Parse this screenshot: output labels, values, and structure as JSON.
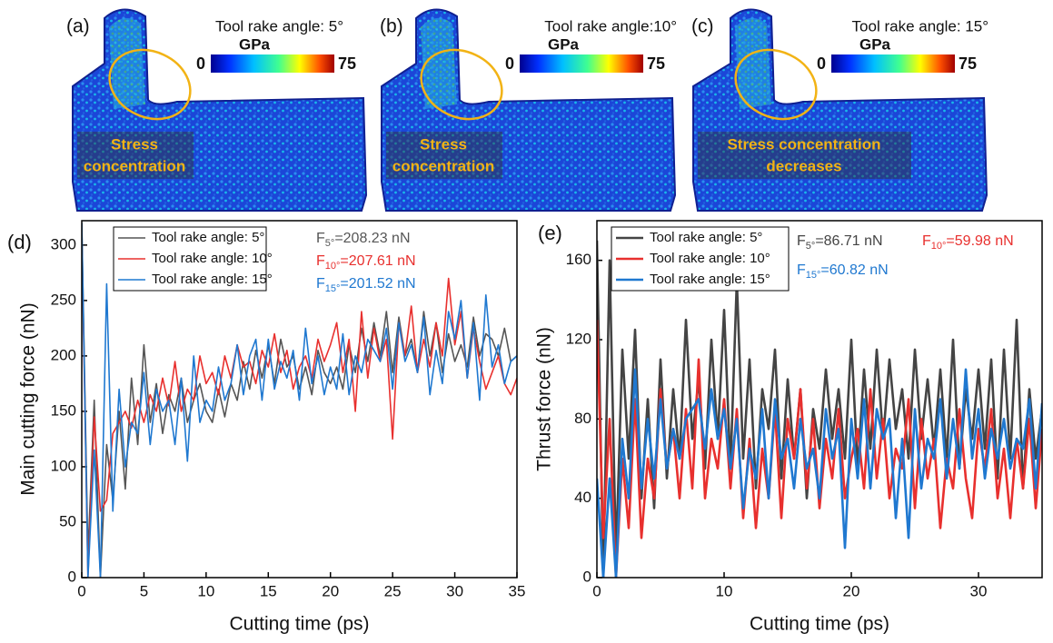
{
  "panels": [
    {
      "label": "(a)",
      "title": "Tool rake angle: 5°",
      "colorbar": {
        "label": "GPa",
        "min": 0,
        "max": 75
      },
      "annotation": [
        "Stress",
        "concentration"
      ]
    },
    {
      "label": "(b)",
      "title": "Tool rake angle:10°",
      "colorbar": {
        "label": "GPa",
        "min": 0,
        "max": 75
      },
      "annotation": [
        "Stress",
        "concentration"
      ]
    },
    {
      "label": "(c)",
      "title": "Tool rake angle: 15°",
      "colorbar": {
        "label": "GPa",
        "min": 0,
        "max": 75
      },
      "annotation": [
        "Stress concentration",
        "decreases"
      ]
    }
  ],
  "chart_data": [
    {
      "type": "line",
      "panel_label": "(d)",
      "x_label": "Cutting time (ps)",
      "y_label": "Main cutting force (nN)",
      "xlim": [
        0,
        35
      ],
      "xticks": [
        0,
        5,
        10,
        15,
        20,
        25,
        30,
        35
      ],
      "ylim": [
        0,
        322
      ],
      "yticks": [
        0,
        50,
        100,
        150,
        200,
        250,
        300
      ],
      "legend": "upper left",
      "x": [
        0,
        0.5,
        1,
        1.5,
        2,
        2.5,
        3,
        3.5,
        4,
        4.5,
        5,
        5.5,
        6,
        6.5,
        7,
        7.5,
        8,
        8.5,
        9,
        9.5,
        10,
        10.5,
        11,
        11.5,
        12,
        12.5,
        13,
        13.5,
        14,
        14.5,
        15,
        15.5,
        16,
        16.5,
        17,
        17.5,
        18,
        18.5,
        19,
        19.5,
        20,
        20.5,
        21,
        21.5,
        22,
        22.5,
        23,
        23.5,
        24,
        24.5,
        25,
        25.5,
        26,
        26.5,
        27,
        27.5,
        28,
        28.5,
        29,
        29.5,
        30,
        30.5,
        31,
        31.5,
        32,
        32.5,
        33,
        33.5,
        34,
        34.5,
        35
      ],
      "series": [
        {
          "name": "Tool rake angle: 5°",
          "color": "#555555",
          "values": [
            320,
            20,
            160,
            0,
            120,
            70,
            150,
            80,
            180,
            120,
            210,
            140,
            175,
            130,
            165,
            150,
            180,
            140,
            160,
            175,
            150,
            140,
            170,
            145,
            175,
            160,
            195,
            170,
            205,
            180,
            210,
            175,
            215,
            190,
            200,
            170,
            190,
            165,
            205,
            185,
            175,
            190,
            170,
            210,
            185,
            225,
            195,
            230,
            200,
            240,
            185,
            235,
            200,
            215,
            185,
            240,
            200,
            230,
            185,
            220,
            195,
            210,
            190,
            235,
            200,
            220,
            215,
            200,
            225,
            195,
            200
          ]
        },
        {
          "name": "Tool rake angle: 10°",
          "color": "#e8302e",
          "values": [
            310,
            0,
            145,
            60,
            70,
            130,
            140,
            150,
            135,
            160,
            140,
            165,
            150,
            180,
            155,
            195,
            150,
            170,
            160,
            200,
            175,
            185,
            165,
            200,
            180,
            210,
            190,
            195,
            175,
            205,
            190,
            220,
            185,
            205,
            170,
            190,
            200,
            180,
            215,
            195,
            210,
            230,
            185,
            215,
            150,
            240,
            180,
            225,
            195,
            215,
            125,
            230,
            200,
            245,
            185,
            215,
            190,
            230,
            200,
            270,
            210,
            240,
            180,
            225,
            195,
            170,
            185,
            200,
            175,
            165,
            180
          ]
        },
        {
          "name": "Tool rake angle: 15°",
          "color": "#1f78d0",
          "values": [
            320,
            0,
            115,
            0,
            265,
            60,
            170,
            100,
            140,
            130,
            185,
            120,
            170,
            150,
            160,
            120,
            180,
            105,
            200,
            140,
            160,
            150,
            190,
            160,
            175,
            210,
            165,
            200,
            215,
            160,
            215,
            170,
            195,
            180,
            205,
            160,
            225,
            175,
            200,
            165,
            190,
            170,
            220,
            165,
            200,
            185,
            215,
            205,
            195,
            225,
            170,
            230,
            195,
            210,
            185,
            235,
            165,
            205,
            175,
            240,
            215,
            250,
            180,
            230,
            160,
            255,
            190,
            210,
            175,
            195,
            200
          ]
        }
      ],
      "annotations": [
        {
          "base": "F",
          "sub": "5°",
          "text": "=208.23 nN",
          "color": "#555555"
        },
        {
          "base": "F",
          "sub": "10°",
          "text": "=207.61 nN",
          "color": "#e8302e"
        },
        {
          "base": "F",
          "sub": "15°",
          "text": "=201.52 nN",
          "color": "#1f78d0"
        }
      ]
    },
    {
      "type": "line",
      "panel_label": "(e)",
      "x_label": "Cutting time (ps)",
      "y_label": "Thrust force (nN)",
      "xlim": [
        0,
        35
      ],
      "xticks": [
        0,
        10,
        20,
        30
      ],
      "ylim": [
        0,
        180
      ],
      "yticks": [
        0,
        40,
        80,
        120,
        160
      ],
      "legend": "upper left",
      "x": [
        0,
        0.5,
        1,
        1.5,
        2,
        2.5,
        3,
        3.5,
        4,
        4.5,
        5,
        5.5,
        6,
        6.5,
        7,
        7.5,
        8,
        8.5,
        9,
        9.5,
        10,
        10.5,
        11,
        11.5,
        12,
        12.5,
        13,
        13.5,
        14,
        14.5,
        15,
        15.5,
        16,
        16.5,
        17,
        17.5,
        18,
        18.5,
        19,
        19.5,
        20,
        20.5,
        21,
        21.5,
        22,
        22.5,
        23,
        23.5,
        24,
        24.5,
        25,
        25.5,
        26,
        26.5,
        27,
        27.5,
        28,
        28.5,
        29,
        29.5,
        30,
        30.5,
        31,
        31.5,
        32,
        32.5,
        33,
        33.5,
        34,
        34.5,
        35
      ],
      "series": [
        {
          "name": "Tool rake angle: 5°",
          "color": "#444444",
          "values": [
            170,
            0,
            160,
            10,
            115,
            60,
            125,
            40,
            90,
            35,
            110,
            50,
            95,
            60,
            130,
            70,
            100,
            55,
            120,
            70,
            135,
            55,
            150,
            60,
            110,
            45,
            95,
            75,
            115,
            50,
            100,
            60,
            95,
            40,
            85,
            65,
            105,
            70,
            95,
            60,
            120,
            55,
            105,
            65,
            115,
            70,
            110,
            75,
            95,
            60,
            115,
            70,
            100,
            65,
            105,
            60,
            120,
            55,
            95,
            70,
            105,
            65,
            110,
            50,
            115,
            60,
            130,
            45,
            95,
            60,
            85
          ]
        },
        {
          "name": "Tool rake angle: 10°",
          "color": "#e8302e",
          "values": [
            130,
            20,
            80,
            0,
            60,
            25,
            90,
            20,
            60,
            40,
            95,
            55,
            75,
            40,
            85,
            45,
            110,
            40,
            70,
            55,
            90,
            45,
            85,
            30,
            70,
            25,
            65,
            40,
            85,
            30,
            80,
            60,
            95,
            45,
            80,
            35,
            70,
            50,
            85,
            40,
            60,
            75,
            45,
            95,
            50,
            80,
            40,
            65,
            55,
            90,
            35,
            80,
            50,
            70,
            25,
            60,
            45,
            85,
            50,
            30,
            75,
            55,
            85,
            40,
            65,
            30,
            70,
            45,
            80,
            35,
            75
          ]
        },
        {
          "name": "Tool rake angle: 15°",
          "color": "#1f78d0",
          "values": [
            50,
            0,
            50,
            0,
            70,
            40,
            105,
            45,
            80,
            50,
            90,
            55,
            75,
            60,
            80,
            85,
            90,
            65,
            95,
            70,
            85,
            55,
            80,
            35,
            65,
            50,
            85,
            40,
            90,
            60,
            70,
            45,
            80,
            55,
            65,
            40,
            85,
            60,
            75,
            15,
            80,
            50,
            90,
            45,
            85,
            70,
            80,
            30,
            70,
            20,
            85,
            45,
            70,
            60,
            90,
            50,
            80,
            55,
            105,
            60,
            85,
            50,
            75,
            60,
            80,
            55,
            70,
            65,
            90,
            45,
            88
          ]
        }
      ],
      "annotations": [
        {
          "base": "F",
          "sub": "5°",
          "text": "=86.71 nN",
          "color": "#444444"
        },
        {
          "base": "F",
          "sub": "10°",
          "text": "=59.98 nN",
          "color": "#e8302e"
        },
        {
          "base": "F",
          "sub": "15°",
          "text": "=60.82 nN",
          "color": "#1f78d0"
        }
      ]
    }
  ]
}
